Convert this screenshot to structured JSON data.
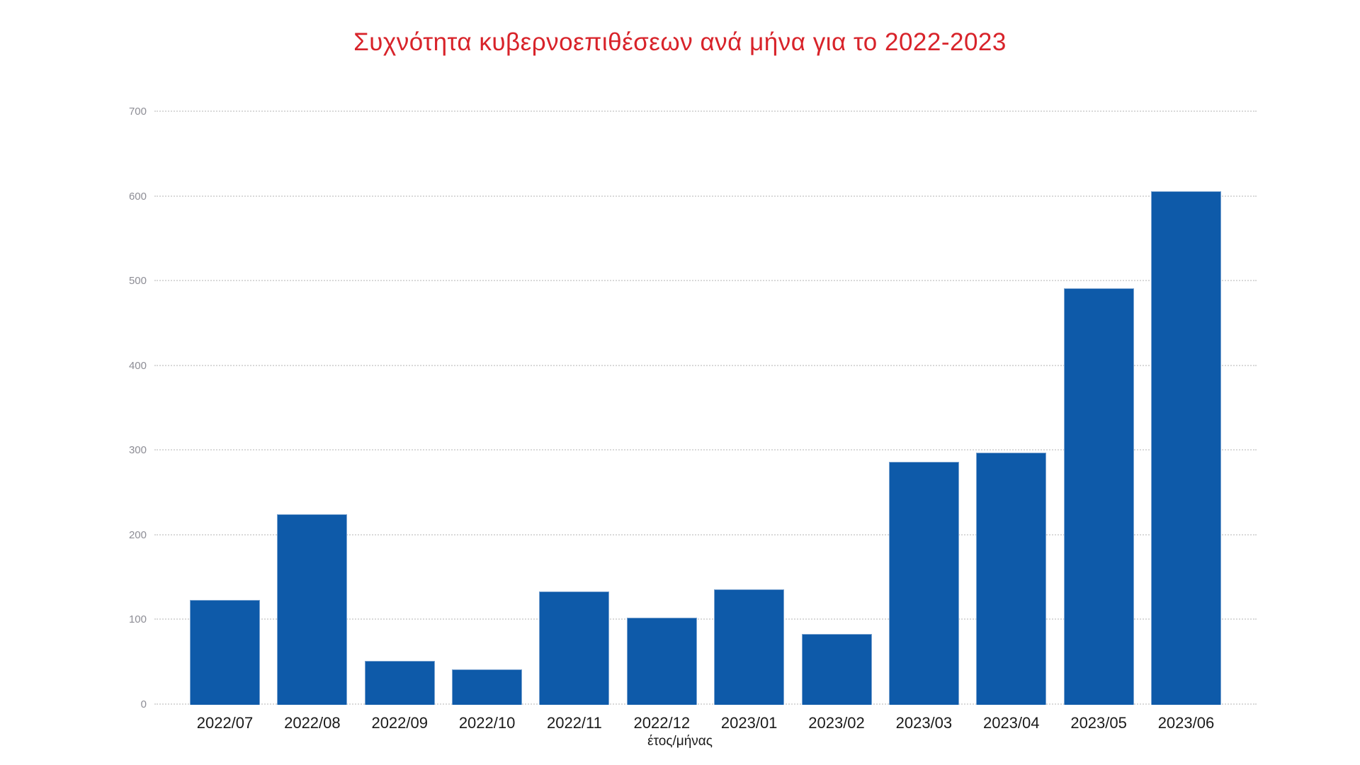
{
  "page": {
    "background": "#ffffff"
  },
  "chart_data": {
    "type": "bar",
    "title": "Συχνότητα κυβερνοεπιθέσεων ανά μήνα για το 2022-2023",
    "xlabel": "έτος/μήνας",
    "ylabel": "",
    "categories": [
      "2022/07",
      "2022/08",
      "2022/09",
      "2022/10",
      "2022/11",
      "2022/12",
      "2023/01",
      "2023/02",
      "2023/03",
      "2023/04",
      "2023/05",
      "2023/06"
    ],
    "values": [
      124,
      225,
      52,
      42,
      134,
      103,
      136,
      84,
      287,
      298,
      492,
      606
    ],
    "ylim": [
      0,
      700
    ],
    "yticks": [
      0,
      100,
      200,
      300,
      400,
      500,
      600,
      700
    ],
    "grid": "horizontal-dotted",
    "legend": "none",
    "colors": {
      "title_color": "#d8232a",
      "bar_color": "#0e5aa9",
      "bar_edge_color": "#7aa3d0",
      "grid_color": "#d9d9d9",
      "axis_label_color": "#8d8d95",
      "tick_label_color": "#1a1a1a",
      "background": "#ffffff"
    }
  }
}
